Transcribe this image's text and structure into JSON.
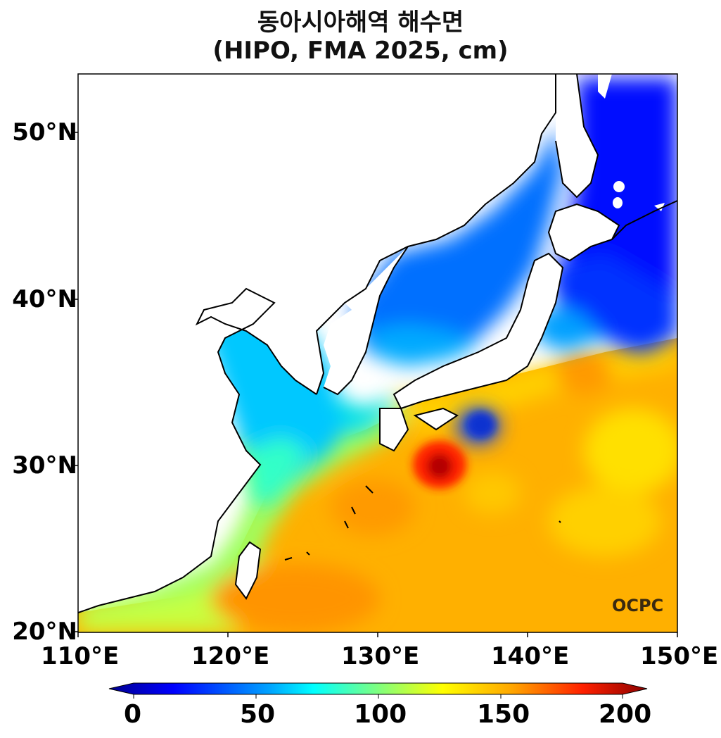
{
  "title": "동아시아해역 해수면",
  "subtitle": "(HIPO, FMA 2025, cm)",
  "lat_labels": [
    "50°N",
    "40°N",
    "30°N",
    "20°N"
  ],
  "lon_labels": [
    "110°E",
    "120°E",
    "130°E",
    "140°E",
    "150°E"
  ],
  "colorbar": {
    "ticks": [
      "0",
      "50",
      "100",
      "150",
      "200"
    ],
    "range": [
      0,
      200
    ],
    "colors": [
      "#00008f",
      "#0000ff",
      "#00a5ff",
      "#00ffff",
      "#7fff7f",
      "#ffff00",
      "#ffa500",
      "#ff3000",
      "#8b0000"
    ]
  },
  "logo": "OCPC",
  "map_extent": {
    "lon": [
      110,
      150
    ],
    "lat": [
      20,
      53.5
    ]
  }
}
